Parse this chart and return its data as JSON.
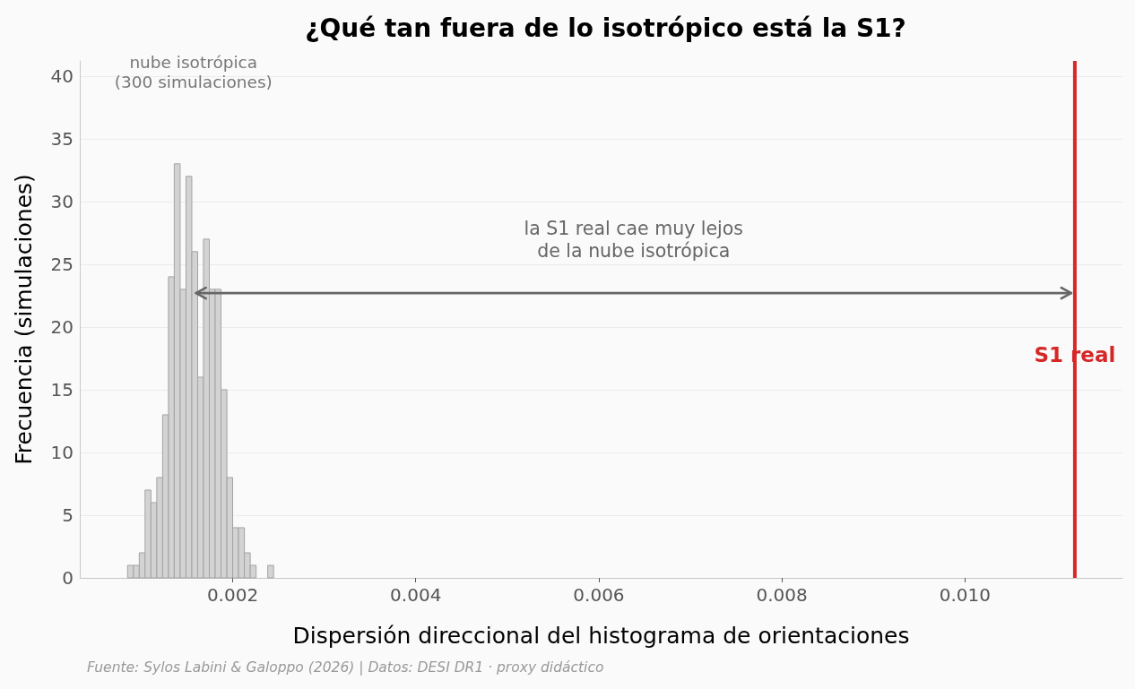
{
  "chart_data": {
    "type": "histogram",
    "title": "¿Qué tan fuera de lo isotrópico está la S1?",
    "xlabel": "Dispersión direccional del histograma de orientaciones",
    "ylabel": "Frecuencia (simulaciones)",
    "bins": [
      0.000852,
      0.000916,
      0.00098,
      0.001043,
      0.001107,
      0.001171,
      0.001235,
      0.001299,
      0.001362,
      0.001426,
      0.00149,
      0.001554,
      0.001618,
      0.001681,
      0.001745,
      0.001809,
      0.001873,
      0.001937,
      0.002,
      0.002064,
      0.002128,
      0.002192,
      0.002256,
      0.002319,
      0.002383,
      0.002447
    ],
    "series": [
      {
        "values": [
          1,
          1,
          2,
          7,
          6,
          8,
          13,
          24,
          33,
          23,
          32,
          26,
          16,
          27,
          23,
          23,
          15,
          8,
          4,
          4,
          2,
          1,
          0,
          0,
          1
        ],
        "color": "#d3d3d3"
      },
      {
        "type": "line",
        "x": [
          0.0016,
          0.01116
        ],
        "values": [
          22.7,
          22.7
        ],
        "color": "#666666",
        "marker": "none"
      }
    ],
    "xlim": [
      0.00033,
      0.01172
    ],
    "xticks": [
      0.002,
      0.004,
      0.006,
      0.008,
      {
        "value": 0.01,
        "label": "0.010"
      }
    ],
    "ylim": [
      0,
      41.2
    ],
    "yticks": [
      0,
      5,
      10,
      15,
      20,
      25,
      30,
      35,
      40
    ],
    "grid": "y",
    "ref_lines": [
      {
        "axis": "x",
        "value": 0.0112,
        "label": "S1 real",
        "color": "#d62728"
      }
    ],
    "annotations": [
      "nube isotrópica\n(300 simulaciones)",
      "la S1 real cae muy lejos\nde la nube isotrópica",
      "Fuente: Sylos Labini & Galoppo (2026) | Datos: DESI DR1 · proxy didáctico"
    ]
  }
}
